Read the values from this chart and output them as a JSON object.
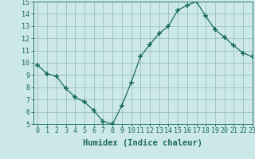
{
  "x": [
    0,
    1,
    2,
    3,
    4,
    5,
    6,
    7,
    8,
    9,
    10,
    11,
    12,
    13,
    14,
    15,
    16,
    17,
    18,
    19,
    20,
    21,
    22,
    23
  ],
  "y": [
    9.8,
    9.1,
    8.9,
    7.9,
    7.2,
    6.8,
    6.1,
    5.2,
    5.0,
    6.5,
    8.4,
    10.5,
    11.5,
    12.4,
    13.0,
    14.3,
    14.7,
    15.0,
    13.8,
    12.7,
    12.1,
    11.4,
    10.8,
    10.5
  ],
  "xlabel": "Humidex (Indice chaleur)",
  "ylim": [
    5,
    15
  ],
  "xlim": [
    -0.5,
    23
  ],
  "yticks": [
    5,
    6,
    7,
    8,
    9,
    10,
    11,
    12,
    13,
    14,
    15
  ],
  "xticks": [
    0,
    1,
    2,
    3,
    4,
    5,
    6,
    7,
    8,
    9,
    10,
    11,
    12,
    13,
    14,
    15,
    16,
    17,
    18,
    19,
    20,
    21,
    22,
    23
  ],
  "line_color": "#1a6b5a",
  "marker": "+",
  "marker_size": 4,
  "marker_lw": 1.2,
  "bg_color": "#cce8e8",
  "grid_color": "#9bbfbf",
  "xlabel_fontsize": 7.5,
  "tick_fontsize": 6.0
}
